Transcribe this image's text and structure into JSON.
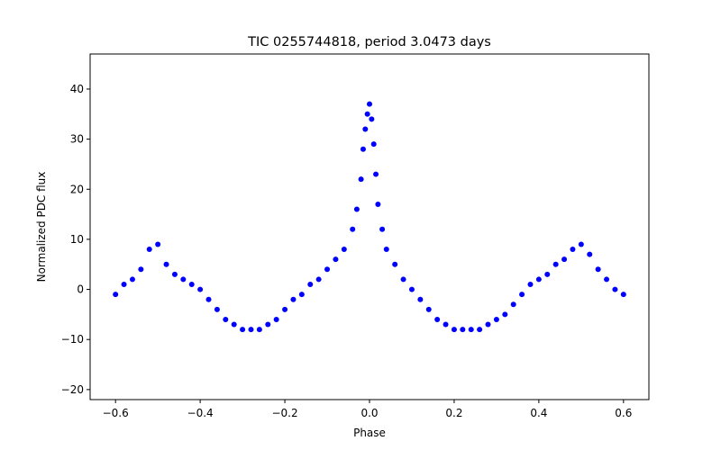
{
  "chart_data": {
    "type": "scatter",
    "title": "TIC 0255744818, period 3.0473 days",
    "xlabel": "Phase",
    "ylabel": "Normalized PDC flux",
    "xlim": [
      -0.66,
      0.66
    ],
    "ylim": [
      -22,
      47
    ],
    "xticks": [
      -0.6,
      -0.4,
      -0.2,
      0.0,
      0.2,
      0.4,
      0.6
    ],
    "xtick_labels": [
      "−0.6",
      "−0.4",
      "−0.2",
      "0.0",
      "0.2",
      "0.4",
      "0.6"
    ],
    "yticks": [
      -20,
      -10,
      0,
      10,
      20,
      30,
      40
    ],
    "ytick_labels": [
      "−20",
      "−10",
      "0",
      "10",
      "20",
      "30",
      "40"
    ],
    "grid": false,
    "color": "#0000ff",
    "series": [
      {
        "x": [
          -0.6,
          -0.58,
          -0.56,
          -0.54,
          -0.52,
          -0.5,
          -0.48,
          -0.46,
          -0.44,
          -0.42,
          -0.4,
          -0.38,
          -0.36,
          -0.34,
          -0.32,
          -0.3,
          -0.28,
          -0.26,
          -0.24,
          -0.22,
          -0.2,
          -0.18,
          -0.16,
          -0.14,
          -0.12,
          -0.1,
          -0.08,
          -0.06,
          -0.04,
          -0.03,
          -0.02,
          -0.015,
          -0.01,
          -0.005,
          0.0,
          0.005,
          0.01,
          0.015,
          0.02,
          0.03,
          0.04,
          0.06,
          0.08,
          0.1,
          0.12,
          0.14,
          0.16,
          0.18,
          0.2,
          0.22,
          0.24,
          0.26,
          0.28,
          0.3,
          0.32,
          0.34,
          0.36,
          0.38,
          0.4,
          0.42,
          0.44,
          0.46,
          0.48,
          0.5,
          0.52,
          0.54,
          0.56,
          0.58,
          0.6
        ],
        "y": [
          -1,
          1,
          2,
          4,
          8,
          9,
          5,
          3,
          2,
          1,
          0,
          -2,
          -4,
          -6,
          -7,
          -8,
          -8,
          -8,
          -7,
          -6,
          -4,
          -2,
          -1,
          1,
          2,
          4,
          6,
          8,
          12,
          16,
          22,
          28,
          32,
          35,
          37,
          34,
          29,
          23,
          17,
          12,
          8,
          5,
          2,
          0,
          -2,
          -4,
          -6,
          -7,
          -8,
          -8,
          -8,
          -8,
          -7,
          -6,
          -5,
          -3,
          -1,
          1,
          2,
          3,
          5,
          6,
          8,
          9,
          7,
          4,
          2,
          0,
          -1
        ]
      }
    ]
  }
}
